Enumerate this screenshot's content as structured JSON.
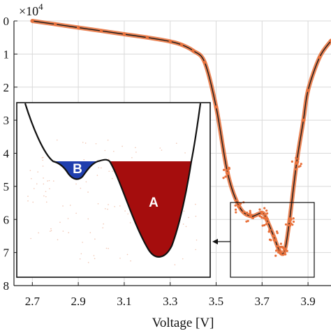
{
  "chart_data": {
    "type": "line",
    "xlabel": "Voltage [V]",
    "ylabel": "",
    "y_multiplier": "×10",
    "y_multiplier_exponent": "4",
    "xlim": [
      2.62,
      4.0
    ],
    "ylim": [
      8,
      0
    ],
    "y_inverted": true,
    "grid": true,
    "x_ticks": [
      "2.7",
      "2.9",
      "3.1",
      "3.3",
      "3.5",
      "3.7",
      "3.9"
    ],
    "y_ticks": [
      "0",
      "1",
      "2",
      "3",
      "4",
      "5",
      "6",
      "7",
      "8"
    ],
    "series": [
      {
        "color": "#e8703a",
        "x": [
          2.7,
          2.8,
          2.9,
          3.0,
          3.1,
          3.2,
          3.3,
          3.35,
          3.4,
          3.45,
          3.5,
          3.55,
          3.6,
          3.65,
          3.7,
          3.72,
          3.75,
          3.78,
          3.8,
          3.82,
          3.85,
          3.88,
          3.9,
          3.95,
          4.0
        ],
        "y": [
          0.0,
          0.1,
          0.2,
          0.3,
          0.4,
          0.5,
          0.62,
          0.72,
          0.9,
          1.25,
          2.6,
          4.6,
          5.6,
          5.9,
          5.8,
          6.0,
          6.5,
          7.0,
          6.9,
          6.0,
          4.3,
          3.0,
          2.1,
          1.1,
          0.6
        ]
      }
    ],
    "inset": {
      "regions": [
        {
          "label": "B",
          "color": "#1f3fae"
        },
        {
          "label": "A",
          "color": "#a50d0d"
        }
      ]
    },
    "colors": {
      "curve": "#e8703a",
      "grid": "#d9d9d9",
      "region_a": "#a50d0d",
      "region_b": "#1f3fae"
    }
  }
}
